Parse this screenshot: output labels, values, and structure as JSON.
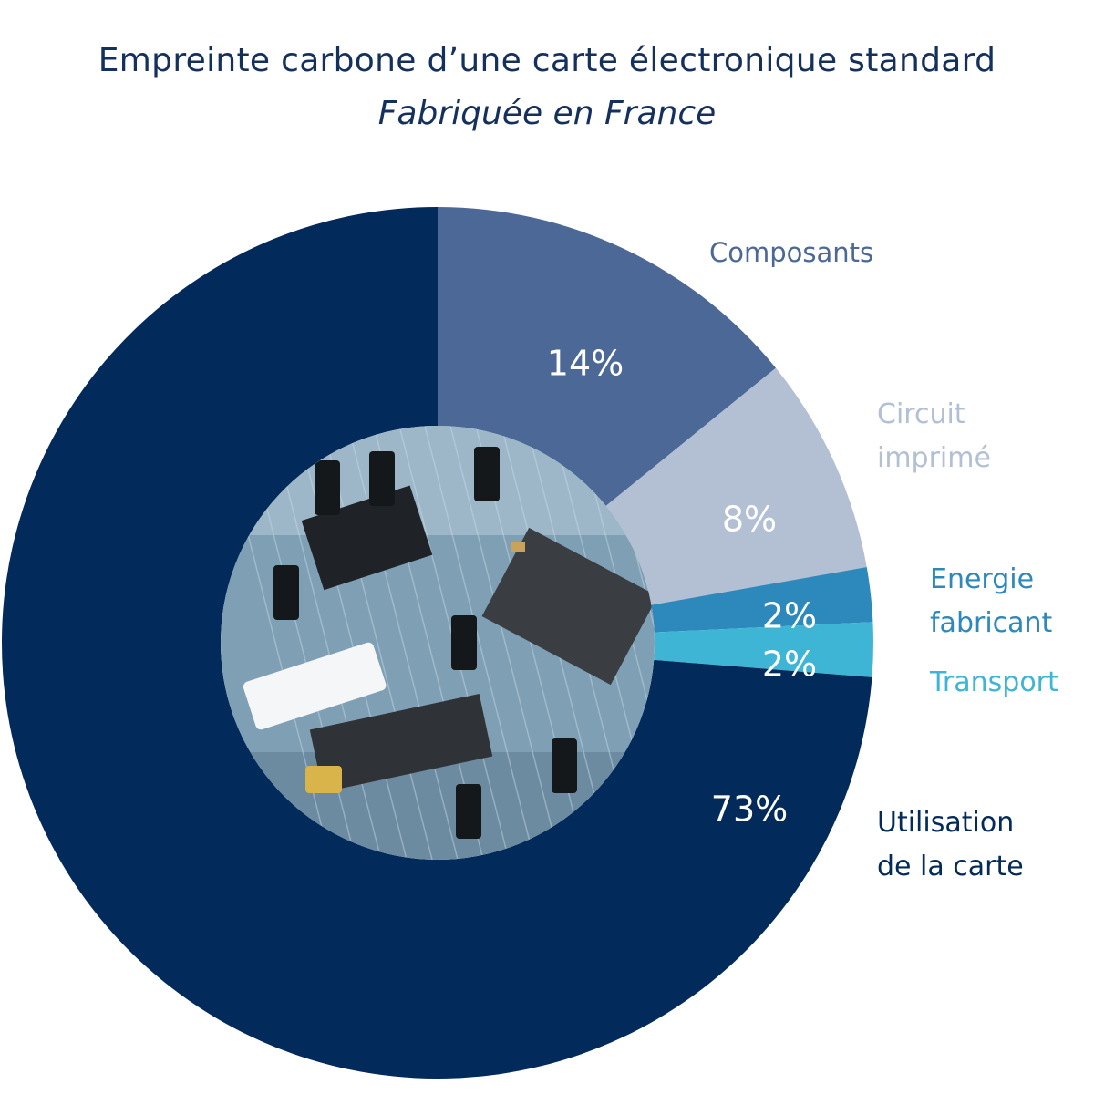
{
  "title": "Empreinte carbone d’une carte électronique standard",
  "subtitle": "Fabriquée en France",
  "center_image": "circuit-board-photo",
  "chart_data": {
    "type": "pie",
    "style": "donut",
    "slices": [
      {
        "label_lines": [
          "Composants"
        ],
        "value": 14,
        "value_label": "14%",
        "color": "#4b6896",
        "label_color": "#4b6896"
      },
      {
        "label_lines": [
          "Circuit",
          "imprimé"
        ],
        "value": 8,
        "value_label": "8%",
        "color": "#b3c0d4",
        "label_color": "#b3c0d4"
      },
      {
        "label_lines": [
          "Energie",
          "fabricant"
        ],
        "value": 2,
        "value_label": "2%",
        "color": "#2d88bb",
        "label_color": "#2d88bb"
      },
      {
        "label_lines": [
          "Transport"
        ],
        "value": 2,
        "value_label": "2%",
        "color": "#3fb5d6",
        "label_color": "#3fb5d6"
      },
      {
        "label_lines": [
          "Utilisation",
          "de la carte"
        ],
        "value": 73,
        "value_label": "73%",
        "color": "#022a5a",
        "label_color": "#022a5a"
      }
    ]
  }
}
